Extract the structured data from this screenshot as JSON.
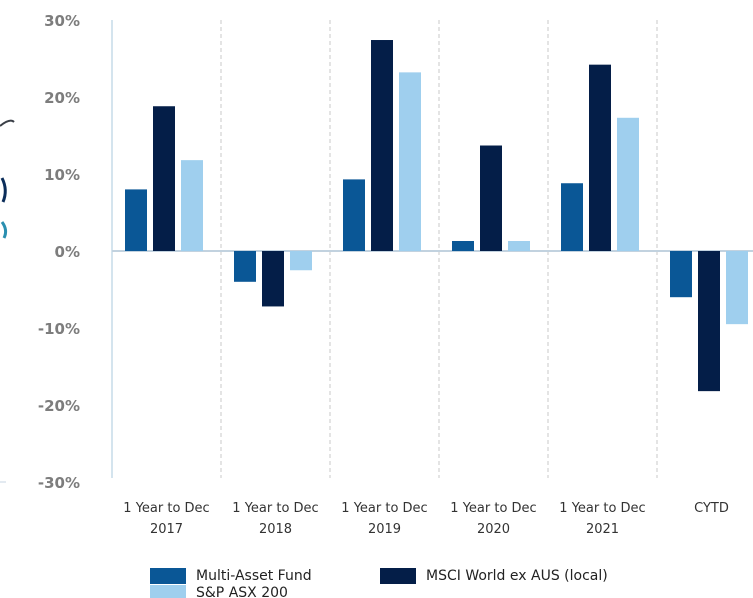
{
  "chart_data": {
    "type": "bar",
    "categories": [
      [
        "1 Year to Dec",
        "2017"
      ],
      [
        "1 Year to Dec",
        "2018"
      ],
      [
        "1 Year to Dec",
        "2019"
      ],
      [
        "1 Year to Dec",
        "2020"
      ],
      [
        "1 Year to Dec",
        "2021"
      ],
      [
        "CYTD"
      ]
    ],
    "series": [
      {
        "name": "Multi-Asset Fund",
        "color": "#0a5796",
        "values": [
          8.0,
          -4.0,
          9.3,
          1.3,
          8.8,
          -6.0
        ]
      },
      {
        "name": "MSCI World ex AUS (local)",
        "color": "#041e48",
        "values": [
          18.8,
          -7.2,
          27.4,
          13.7,
          24.2,
          -18.2
        ]
      },
      {
        "name": "S&P ASX 200",
        "color": "#9fcfee",
        "values": [
          11.8,
          -2.5,
          23.2,
          1.3,
          17.3,
          -9.5
        ]
      }
    ],
    "yticks": [
      "30%",
      "20%",
      "10%",
      "0%",
      "-10%",
      "-20%",
      "-30%"
    ],
    "ylim": [
      -30,
      30
    ],
    "grid": false,
    "legend": "bottom",
    "title": "",
    "xlabel": "",
    "ylabel": ""
  }
}
